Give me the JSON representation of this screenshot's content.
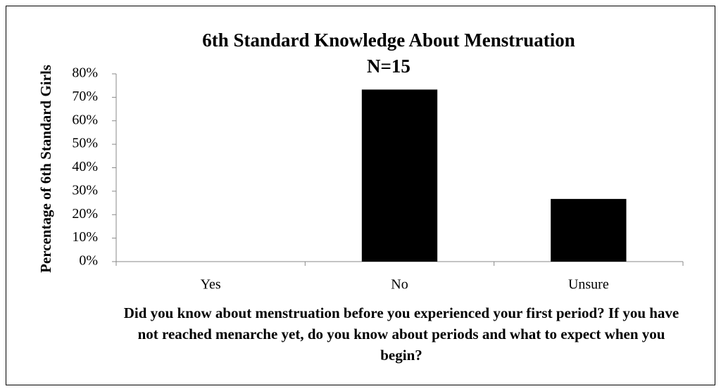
{
  "chart_data": {
    "type": "bar",
    "title": "6th Standard Knowledge About Menstruation",
    "subtitle": "N=15",
    "x_label": "Did you know about menstruation before you experienced your first period? If you have not reached menarche yet, do you know about periods and what to expect when you begin?",
    "y_label": "Percentage of 6th Standard Girls",
    "categories": [
      "Yes",
      "No",
      "Unsure"
    ],
    "values": [
      0,
      73.3,
      26.7
    ],
    "color": "#000000",
    "ylim": [
      0,
      80
    ],
    "yticks": [
      {
        "value": 0,
        "label": "0%"
      },
      {
        "value": 10,
        "label": "10%"
      },
      {
        "value": 20,
        "label": "20%"
      },
      {
        "value": 30,
        "label": "30%"
      },
      {
        "value": 40,
        "label": "40%"
      },
      {
        "value": 50,
        "label": "50%"
      },
      {
        "value": 60,
        "label": "60%"
      },
      {
        "value": 70,
        "label": "70%"
      },
      {
        "value": 80,
        "label": "80%"
      }
    ],
    "grid": false
  }
}
